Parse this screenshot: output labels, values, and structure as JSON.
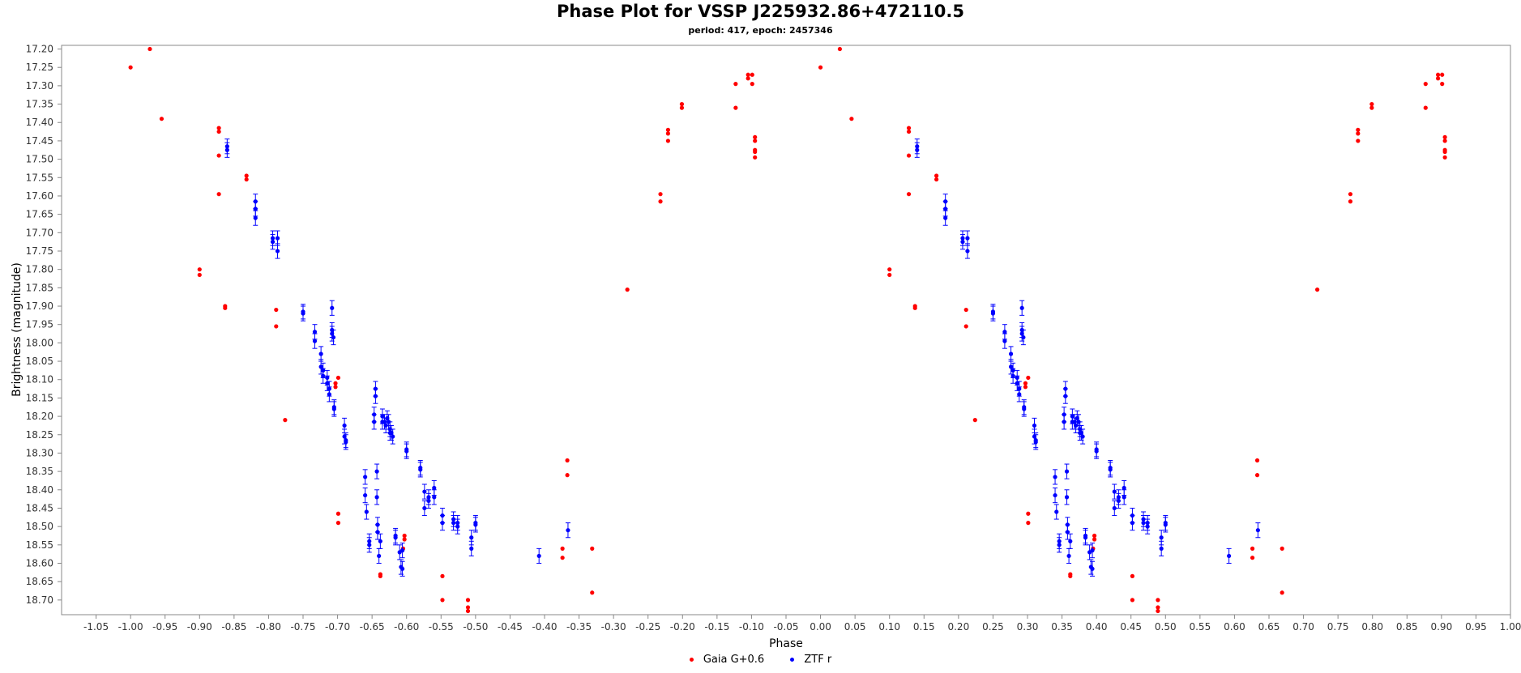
{
  "chart_data": {
    "type": "scatter",
    "title": "Phase Plot for VSSP J225932.86+472110.5",
    "subtitle": "period: 417, epoch: 2457346",
    "xlabel": "Phase",
    "ylabel": "Brightness (magnitude)",
    "xlim": [
      -1.1,
      1.0
    ],
    "ylim": [
      18.74,
      17.19
    ],
    "y_inverted": true,
    "x_ticks": [
      "-1.05",
      "-1.00",
      "-0.95",
      "-0.90",
      "-0.85",
      "-0.80",
      "-0.75",
      "-0.70",
      "-0.65",
      "-0.60",
      "-0.55",
      "-0.50",
      "-0.45",
      "-0.40",
      "-0.35",
      "-0.30",
      "-0.25",
      "-0.20",
      "-0.15",
      "-0.10",
      "-0.05",
      "0.00",
      "0.05",
      "0.10",
      "0.15",
      "0.20",
      "0.25",
      "0.30",
      "0.35",
      "0.40",
      "0.45",
      "0.50",
      "0.55",
      "0.60",
      "0.65",
      "0.70",
      "0.75",
      "0.80",
      "0.85",
      "0.90",
      "0.95",
      "1.00"
    ],
    "y_ticks": [
      "17.20",
      "17.25",
      "17.30",
      "17.35",
      "17.40",
      "17.45",
      "17.50",
      "17.55",
      "17.60",
      "17.65",
      "17.70",
      "17.75",
      "17.80",
      "17.85",
      "17.90",
      "17.95",
      "18.00",
      "18.05",
      "18.10",
      "18.15",
      "18.20",
      "18.25",
      "18.30",
      "18.35",
      "18.40",
      "18.45",
      "18.50",
      "18.55",
      "18.60",
      "18.65",
      "18.70"
    ],
    "grid": false,
    "legend_position": "bottom",
    "series": [
      {
        "name": "Gaia G+0.6",
        "color": "#ff0000",
        "points": [
          [
            0.0,
            17.25
          ],
          [
            0.028,
            17.2
          ],
          [
            0.045,
            17.39
          ],
          [
            0.1,
            17.8
          ],
          [
            0.1,
            17.815
          ],
          [
            0.128,
            17.415
          ],
          [
            0.128,
            17.425
          ],
          [
            0.128,
            17.49
          ],
          [
            0.128,
            17.595
          ],
          [
            0.137,
            17.9
          ],
          [
            0.137,
            17.905
          ],
          [
            0.168,
            17.545
          ],
          [
            0.168,
            17.555
          ],
          [
            0.211,
            17.91
          ],
          [
            0.211,
            17.955
          ],
          [
            0.224,
            18.21
          ],
          [
            0.301,
            18.095
          ],
          [
            0.297,
            18.11
          ],
          [
            0.297,
            18.12
          ],
          [
            0.301,
            18.465
          ],
          [
            0.301,
            18.49
          ],
          [
            0.397,
            18.525
          ],
          [
            0.397,
            18.535
          ],
          [
            0.395,
            18.56
          ],
          [
            0.362,
            18.63
          ],
          [
            0.362,
            18.635
          ],
          [
            0.452,
            18.635
          ],
          [
            0.452,
            18.7
          ],
          [
            0.489,
            18.7
          ],
          [
            0.489,
            18.72
          ],
          [
            0.489,
            18.73
          ],
          [
            0.626,
            18.56
          ],
          [
            0.626,
            18.585
          ],
          [
            0.633,
            18.32
          ],
          [
            0.633,
            18.36
          ],
          [
            0.669,
            18.56
          ],
          [
            0.669,
            18.68
          ],
          [
            0.72,
            17.855
          ],
          [
            0.768,
            17.595
          ],
          [
            0.768,
            17.615
          ],
          [
            0.779,
            17.42
          ],
          [
            0.779,
            17.43
          ],
          [
            0.779,
            17.45
          ],
          [
            0.799,
            17.35
          ],
          [
            0.799,
            17.36
          ],
          [
            0.877,
            17.295
          ],
          [
            0.877,
            17.36
          ],
          [
            0.895,
            17.27
          ],
          [
            0.895,
            17.28
          ],
          [
            0.901,
            17.27
          ],
          [
            0.901,
            17.295
          ],
          [
            0.905,
            17.44
          ],
          [
            0.905,
            17.45
          ],
          [
            0.905,
            17.475
          ],
          [
            0.905,
            17.48
          ],
          [
            0.905,
            17.495
          ],
          [
            -1.0,
            17.25
          ],
          [
            -0.972,
            17.2
          ],
          [
            -0.955,
            17.39
          ],
          [
            -0.9,
            17.8
          ],
          [
            -0.9,
            17.815
          ],
          [
            -0.872,
            17.415
          ],
          [
            -0.872,
            17.425
          ],
          [
            -0.872,
            17.49
          ],
          [
            -0.872,
            17.595
          ],
          [
            -0.863,
            17.9
          ],
          [
            -0.863,
            17.905
          ],
          [
            -0.832,
            17.545
          ],
          [
            -0.832,
            17.555
          ],
          [
            -0.789,
            17.91
          ],
          [
            -0.789,
            17.955
          ],
          [
            -0.776,
            18.21
          ],
          [
            -0.699,
            18.095
          ],
          [
            -0.703,
            18.11
          ],
          [
            -0.703,
            18.12
          ],
          [
            -0.699,
            18.465
          ],
          [
            -0.699,
            18.49
          ],
          [
            -0.603,
            18.525
          ],
          [
            -0.603,
            18.535
          ],
          [
            -0.605,
            18.56
          ],
          [
            -0.638,
            18.63
          ],
          [
            -0.638,
            18.635
          ],
          [
            -0.548,
            18.635
          ],
          [
            -0.548,
            18.7
          ],
          [
            -0.511,
            18.7
          ],
          [
            -0.511,
            18.72
          ],
          [
            -0.511,
            18.73
          ],
          [
            -0.374,
            18.56
          ],
          [
            -0.374,
            18.585
          ],
          [
            -0.367,
            18.32
          ],
          [
            -0.367,
            18.36
          ],
          [
            -0.331,
            18.56
          ],
          [
            -0.331,
            18.68
          ],
          [
            -0.28,
            17.855
          ],
          [
            -0.232,
            17.595
          ],
          [
            -0.232,
            17.615
          ],
          [
            -0.221,
            17.42
          ],
          [
            -0.221,
            17.43
          ],
          [
            -0.221,
            17.45
          ],
          [
            -0.201,
            17.35
          ],
          [
            -0.201,
            17.36
          ],
          [
            -0.123,
            17.295
          ],
          [
            -0.123,
            17.36
          ],
          [
            -0.105,
            17.27
          ],
          [
            -0.105,
            17.28
          ],
          [
            -0.099,
            17.27
          ],
          [
            -0.099,
            17.295
          ],
          [
            -0.095,
            17.44
          ],
          [
            -0.095,
            17.45
          ],
          [
            -0.095,
            17.475
          ],
          [
            -0.095,
            17.48
          ],
          [
            -0.095,
            17.495
          ]
        ]
      },
      {
        "name": "ZTF r",
        "color": "#0000ff",
        "error": 0.02,
        "points": [
          [
            0.14,
            17.465
          ],
          [
            0.14,
            17.475
          ],
          [
            0.181,
            17.615
          ],
          [
            0.181,
            17.635
          ],
          [
            0.181,
            17.66
          ],
          [
            0.206,
            17.715
          ],
          [
            0.206,
            17.725
          ],
          [
            0.213,
            17.715
          ],
          [
            0.213,
            17.75
          ],
          [
            0.25,
            17.915
          ],
          [
            0.25,
            17.92
          ],
          [
            0.267,
            17.97
          ],
          [
            0.267,
            17.995
          ],
          [
            0.276,
            18.03
          ],
          [
            0.276,
            18.065
          ],
          [
            0.279,
            18.075
          ],
          [
            0.279,
            18.09
          ],
          [
            0.285,
            18.095
          ],
          [
            0.285,
            18.11
          ],
          [
            0.288,
            18.125
          ],
          [
            0.288,
            18.14
          ],
          [
            0.292,
            17.905
          ],
          [
            0.292,
            17.965
          ],
          [
            0.292,
            17.975
          ],
          [
            0.294,
            17.985
          ],
          [
            0.295,
            18.175
          ],
          [
            0.295,
            18.18
          ],
          [
            0.31,
            18.225
          ],
          [
            0.31,
            18.255
          ],
          [
            0.312,
            18.265
          ],
          [
            0.312,
            18.27
          ],
          [
            0.34,
            18.365
          ],
          [
            0.34,
            18.415
          ],
          [
            0.342,
            18.46
          ],
          [
            0.346,
            18.54
          ],
          [
            0.346,
            18.55
          ],
          [
            0.353,
            18.195
          ],
          [
            0.353,
            18.215
          ],
          [
            0.355,
            18.145
          ],
          [
            0.355,
            18.125
          ],
          [
            0.357,
            18.35
          ],
          [
            0.357,
            18.42
          ],
          [
            0.358,
            18.495
          ],
          [
            0.358,
            18.515
          ],
          [
            0.36,
            18.58
          ],
          [
            0.362,
            18.54
          ],
          [
            0.365,
            18.215
          ],
          [
            0.365,
            18.2
          ],
          [
            0.368,
            18.215
          ],
          [
            0.37,
            18.225
          ],
          [
            0.372,
            18.205
          ],
          [
            0.374,
            18.215
          ],
          [
            0.376,
            18.235
          ],
          [
            0.376,
            18.245
          ],
          [
            0.378,
            18.245
          ],
          [
            0.38,
            18.255
          ],
          [
            0.384,
            18.525
          ],
          [
            0.384,
            18.53
          ],
          [
            0.39,
            18.57
          ],
          [
            0.392,
            18.61
          ],
          [
            0.394,
            18.615
          ],
          [
            0.394,
            18.565
          ],
          [
            0.4,
            18.29
          ],
          [
            0.4,
            18.295
          ],
          [
            0.42,
            18.34
          ],
          [
            0.42,
            18.345
          ],
          [
            0.426,
            18.405
          ],
          [
            0.426,
            18.45
          ],
          [
            0.432,
            18.43
          ],
          [
            0.432,
            18.42
          ],
          [
            0.44,
            18.395
          ],
          [
            0.44,
            18.42
          ],
          [
            0.452,
            18.47
          ],
          [
            0.452,
            18.49
          ],
          [
            0.468,
            18.48
          ],
          [
            0.468,
            18.49
          ],
          [
            0.474,
            18.5
          ],
          [
            0.474,
            18.49
          ],
          [
            0.494,
            18.56
          ],
          [
            0.494,
            18.53
          ],
          [
            0.5,
            18.495
          ],
          [
            0.5,
            18.49
          ],
          [
            0.592,
            18.58
          ],
          [
            0.634,
            18.51
          ],
          [
            -0.86,
            17.465
          ],
          [
            -0.86,
            17.475
          ],
          [
            -0.819,
            17.615
          ],
          [
            -0.819,
            17.635
          ],
          [
            -0.819,
            17.66
          ],
          [
            -0.794,
            17.715
          ],
          [
            -0.794,
            17.725
          ],
          [
            -0.787,
            17.715
          ],
          [
            -0.787,
            17.75
          ],
          [
            -0.75,
            17.915
          ],
          [
            -0.75,
            17.92
          ],
          [
            -0.733,
            17.97
          ],
          [
            -0.733,
            17.995
          ],
          [
            -0.724,
            18.03
          ],
          [
            -0.724,
            18.065
          ],
          [
            -0.721,
            18.075
          ],
          [
            -0.721,
            18.09
          ],
          [
            -0.715,
            18.095
          ],
          [
            -0.715,
            18.11
          ],
          [
            -0.712,
            18.125
          ],
          [
            -0.712,
            18.14
          ],
          [
            -0.708,
            17.905
          ],
          [
            -0.708,
            17.965
          ],
          [
            -0.708,
            17.975
          ],
          [
            -0.706,
            17.985
          ],
          [
            -0.705,
            18.175
          ],
          [
            -0.705,
            18.18
          ],
          [
            -0.69,
            18.225
          ],
          [
            -0.69,
            18.255
          ],
          [
            -0.688,
            18.265
          ],
          [
            -0.688,
            18.27
          ],
          [
            -0.66,
            18.365
          ],
          [
            -0.66,
            18.415
          ],
          [
            -0.658,
            18.46
          ],
          [
            -0.654,
            18.54
          ],
          [
            -0.654,
            18.55
          ],
          [
            -0.647,
            18.195
          ],
          [
            -0.647,
            18.215
          ],
          [
            -0.645,
            18.145
          ],
          [
            -0.645,
            18.125
          ],
          [
            -0.643,
            18.35
          ],
          [
            -0.643,
            18.42
          ],
          [
            -0.642,
            18.495
          ],
          [
            -0.642,
            18.515
          ],
          [
            -0.64,
            18.58
          ],
          [
            -0.638,
            18.54
          ],
          [
            -0.635,
            18.215
          ],
          [
            -0.635,
            18.2
          ],
          [
            -0.632,
            18.215
          ],
          [
            -0.63,
            18.225
          ],
          [
            -0.628,
            18.205
          ],
          [
            -0.626,
            18.215
          ],
          [
            -0.624,
            18.235
          ],
          [
            -0.624,
            18.245
          ],
          [
            -0.622,
            18.245
          ],
          [
            -0.62,
            18.255
          ],
          [
            -0.616,
            18.525
          ],
          [
            -0.616,
            18.53
          ],
          [
            -0.61,
            18.57
          ],
          [
            -0.608,
            18.61
          ],
          [
            -0.606,
            18.615
          ],
          [
            -0.606,
            18.565
          ],
          [
            -0.6,
            18.29
          ],
          [
            -0.6,
            18.295
          ],
          [
            -0.58,
            18.34
          ],
          [
            -0.58,
            18.345
          ],
          [
            -0.574,
            18.405
          ],
          [
            -0.574,
            18.45
          ],
          [
            -0.568,
            18.43
          ],
          [
            -0.568,
            18.42
          ],
          [
            -0.56,
            18.395
          ],
          [
            -0.56,
            18.42
          ],
          [
            -0.548,
            18.47
          ],
          [
            -0.548,
            18.49
          ],
          [
            -0.532,
            18.48
          ],
          [
            -0.532,
            18.49
          ],
          [
            -0.526,
            18.5
          ],
          [
            -0.526,
            18.49
          ],
          [
            -0.506,
            18.56
          ],
          [
            -0.506,
            18.53
          ],
          [
            -0.5,
            18.495
          ],
          [
            -0.5,
            18.49
          ],
          [
            -0.408,
            18.58
          ],
          [
            -0.366,
            18.51
          ]
        ]
      }
    ]
  }
}
